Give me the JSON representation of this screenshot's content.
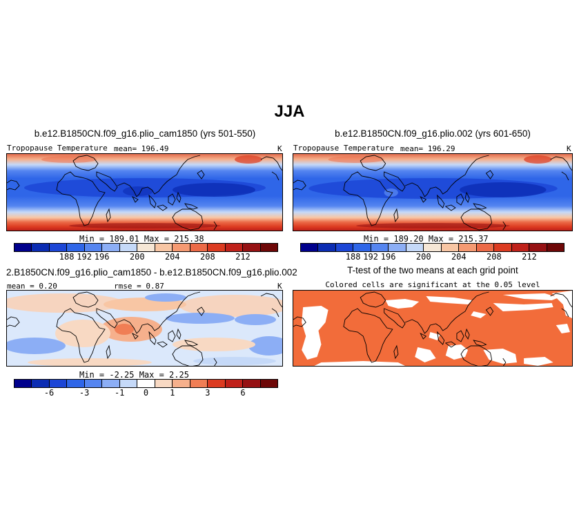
{
  "figure": {
    "season": "JJA"
  },
  "panels": {
    "top_left": {
      "title": "b.e12.B1850CN.f09_g16.plio_cam1850 (yrs 501-550)",
      "variable": "Tropopause Temperature",
      "mean": "mean= 196.49",
      "units": "K",
      "minmax": "Min = 189.01 Max = 215.38"
    },
    "top_right": {
      "title": "b.e12.B1850CN.f09_g16.plio.002 (yrs 601-650)",
      "variable": "Tropopause Temperature",
      "mean": "mean= 196.29",
      "units": "K",
      "minmax": "Min = 189.20 Max = 215.37"
    },
    "bottom_left": {
      "title": "2.B1850CN.f09_g16.plio_cam1850 - b.e12.B1850CN.f09_g16.plio.002",
      "mean": "mean = 0.20",
      "rmse": "rmse = 0.87",
      "units": "K",
      "minmax": "Min = -2.25 Max = 2.25"
    },
    "bottom_right": {
      "title": "T-test of the two means at each grid point",
      "subtitle": "Colored cells are significant at the 0.05 level",
      "fill_color": "#f26c3a"
    }
  },
  "colorbars": {
    "abs": {
      "colors": [
        "#00008c",
        "#0b2cb3",
        "#1c46d6",
        "#2f66e8",
        "#5585f0",
        "#8caef5",
        "#c5d9f8",
        "#f6e7d6",
        "#f8c6a4",
        "#f59a72",
        "#ec6a47",
        "#dc3b21",
        "#c0211a",
        "#961113",
        "#6e0707"
      ],
      "ticks": [
        "188",
        "192",
        "196",
        "200",
        "204",
        "208",
        "212"
      ]
    },
    "diff": {
      "colors": [
        "#00008c",
        "#0b2cb3",
        "#1c46d6",
        "#2f66e8",
        "#5585f0",
        "#8caef5",
        "#c5d9f8",
        "#ffffff",
        "#f8d9c3",
        "#f6b08c",
        "#f07e55",
        "#dc3b21",
        "#c0211a",
        "#961113",
        "#6e0707"
      ],
      "ticks": [
        "-6",
        "-3",
        "-1",
        "0",
        "1",
        "3",
        "6"
      ]
    }
  }
}
